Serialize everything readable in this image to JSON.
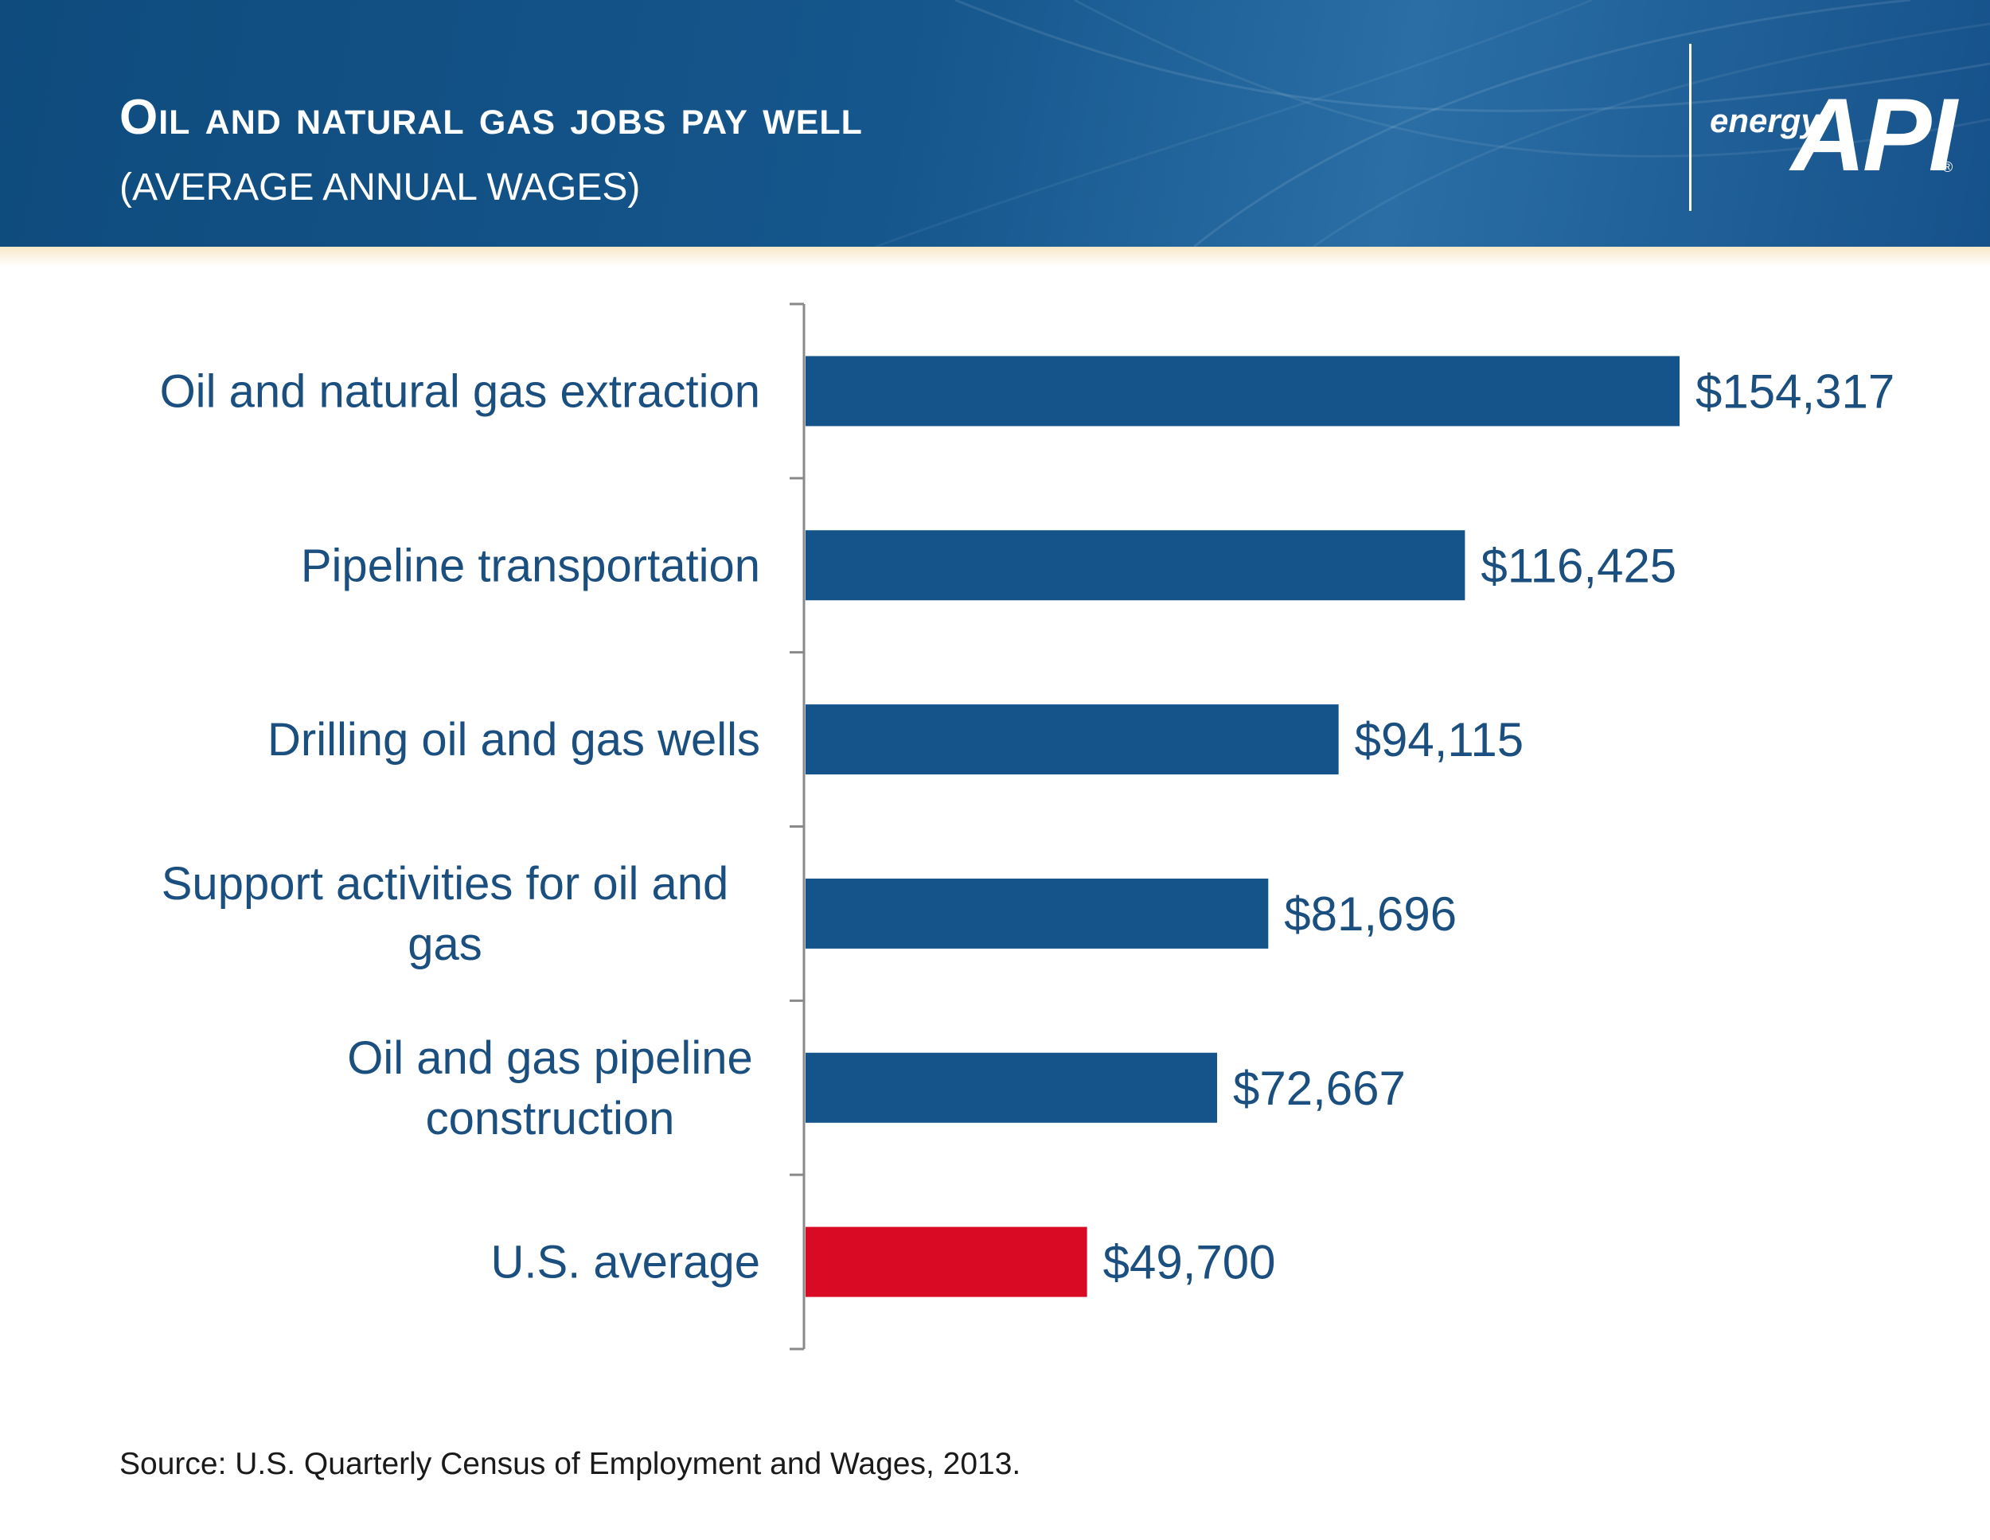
{
  "header": {
    "title": "Oil and natural gas jobs pay well",
    "subtitle": "(AVERAGE ANNUAL WAGES)",
    "brand_word": "energy",
    "brand_logo": "API",
    "brand_mark": "®"
  },
  "chart_data": {
    "type": "bar",
    "orientation": "horizontal",
    "categories": [
      [
        "Oil and natural gas extraction"
      ],
      [
        "Pipeline transportation"
      ],
      [
        "Drilling oil and gas wells"
      ],
      [
        "Support activities for oil and",
        "gas"
      ],
      [
        "Oil and gas pipeline",
        "construction"
      ],
      [
        "U.S. average"
      ]
    ],
    "values": [
      154317,
      116425,
      94115,
      81696,
      72667,
      49700
    ],
    "value_labels": [
      "$154,317",
      "$116,425",
      "$94,115",
      "$81,696",
      "$72,667",
      "$49,700"
    ],
    "bar_colors": [
      "#15548a",
      "#15548a",
      "#15548a",
      "#15548a",
      "#15548a",
      "#d90a23"
    ],
    "xlim": [
      0,
      170000
    ],
    "grid": false,
    "legend": "none",
    "title": "Oil and natural gas jobs pay well",
    "subtitle": "(AVERAGE ANNUAL WAGES)"
  },
  "footer": {
    "source": "Source:  U.S. Quarterly Census of Employment and Wages, 2013."
  }
}
